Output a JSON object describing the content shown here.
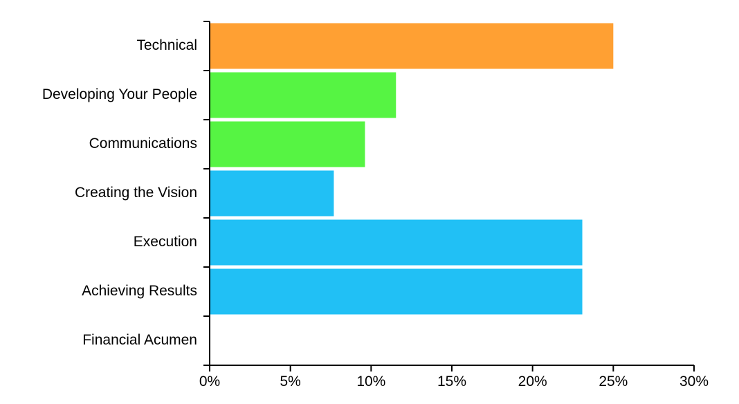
{
  "chart_data": {
    "type": "bar",
    "orientation": "horizontal",
    "categories": [
      "Technical",
      "Developing Your People",
      "Communications",
      "Creating the Vision",
      "Execution",
      "Achieving Results",
      "Financial Acumen"
    ],
    "values": [
      25,
      11.54,
      9.62,
      7.69,
      23.08,
      23.08,
      0
    ],
    "bar_colors": [
      "#FFA033",
      "#56F443",
      "#56F443",
      "#21C0F5",
      "#21C0F5",
      "#21C0F5",
      "#21C0F5"
    ],
    "x_ticks": [
      "0%",
      "5%",
      "10%",
      "15%",
      "20%",
      "25%",
      "30%"
    ],
    "xlim": [
      0,
      30
    ],
    "x_unit": "%",
    "grid": false,
    "title": "",
    "xlabel": "",
    "ylabel": ""
  }
}
